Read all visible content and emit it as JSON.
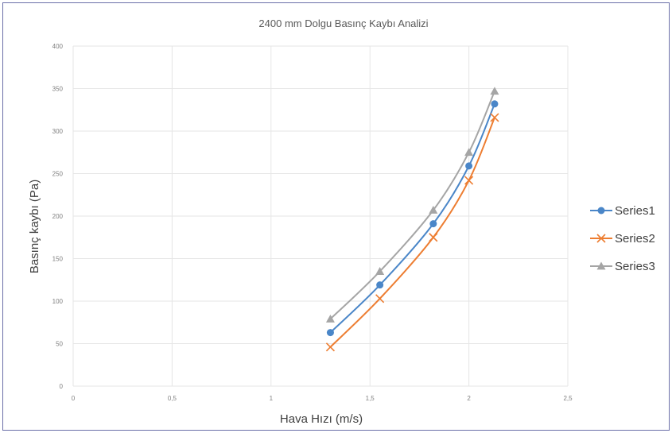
{
  "chart_data": {
    "type": "line",
    "title": "2400 mm Dolgu Basınç Kaybı Analizi",
    "xlabel": "Hava Hızı (m/s)",
    "ylabel": "Basınç kaybı (Pa)",
    "xlim": [
      0,
      2.5
    ],
    "ylim": [
      0,
      400
    ],
    "x_ticks": [
      {
        "value": 0,
        "label": "0"
      },
      {
        "value": 0.5,
        "label": "0,5"
      },
      {
        "value": 1,
        "label": "1"
      },
      {
        "value": 1.5,
        "label": "1,5"
      },
      {
        "value": 2,
        "label": "2"
      },
      {
        "value": 2.5,
        "label": "2,5"
      }
    ],
    "y_ticks": [
      {
        "value": 0,
        "label": "0"
      },
      {
        "value": 50,
        "label": "50"
      },
      {
        "value": 100,
        "label": "100"
      },
      {
        "value": 150,
        "label": "150"
      },
      {
        "value": 200,
        "label": "200"
      },
      {
        "value": 250,
        "label": "250"
      },
      {
        "value": 300,
        "label": "300"
      },
      {
        "value": 350,
        "label": "350"
      },
      {
        "value": 400,
        "label": "400"
      }
    ],
    "grid": true,
    "legend_position": "right",
    "series": [
      {
        "name": "Series1",
        "color": "#4a86c8",
        "marker": "circle",
        "points": [
          [
            1.3,
            63
          ],
          [
            1.55,
            119
          ],
          [
            1.82,
            191
          ],
          [
            2.0,
            259
          ],
          [
            2.13,
            332
          ]
        ]
      },
      {
        "name": "Series2",
        "color": "#ed7d31",
        "marker": "x",
        "points": [
          [
            1.3,
            46
          ],
          [
            1.55,
            103
          ],
          [
            1.82,
            175
          ],
          [
            2.0,
            242
          ],
          [
            2.13,
            316
          ]
        ]
      },
      {
        "name": "Series3",
        "color": "#a5a5a5",
        "marker": "triangle",
        "points": [
          [
            1.3,
            79
          ],
          [
            1.55,
            135
          ],
          [
            1.82,
            207
          ],
          [
            2.0,
            275
          ],
          [
            2.13,
            347
          ]
        ]
      }
    ]
  }
}
